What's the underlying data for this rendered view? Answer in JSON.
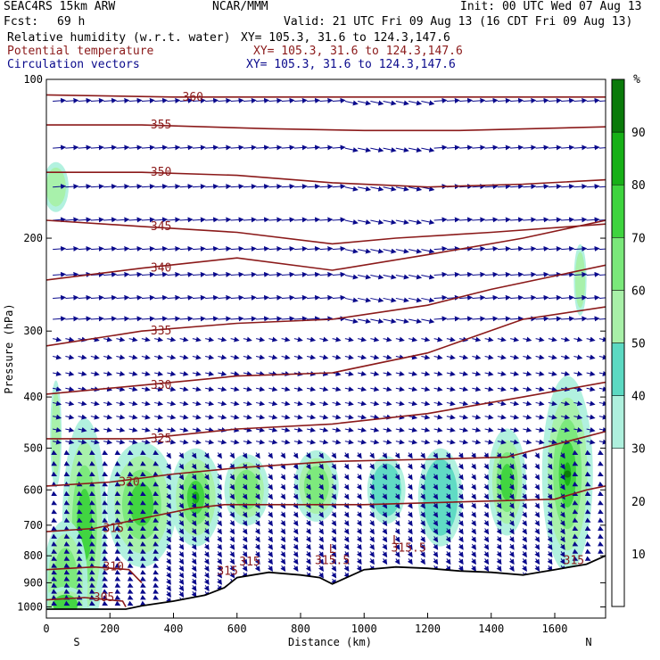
{
  "header": {
    "model": "SEAC4RS 15km ARW",
    "org": "NCAR/MMM",
    "init": "Init: 00 UTC Wed 07 Aug 13",
    "fcst_label": "Fcst:",
    "fcst_value": "69 h",
    "valid": "Valid: 21 UTC Fri 09 Aug 13 (16 CDT Fri 09 Aug 13)"
  },
  "fields": [
    {
      "label": "Relative humidity (w.r.t. water)",
      "xy": "XY= 105.3, 31.6 to 124.3,147.6",
      "color": "#000000"
    },
    {
      "label": "Potential temperature",
      "xy": "XY= 105.3, 31.6 to 124.3,147.6",
      "color": "#8b1a1a"
    },
    {
      "label": "Circulation vectors",
      "xy": "XY= 105.3, 31.6 to 124.3,147.6",
      "color": "#0a0a8c"
    }
  ],
  "chart_data": {
    "type": "cross-section",
    "ylabel": "Pressure (hPa)",
    "xlabel": "Distance (km)",
    "xlim": [
      0,
      1760
    ],
    "ylim": [
      1050,
      100
    ],
    "y_scale": "log",
    "x_ticks": [
      "0",
      "200",
      "400",
      "600",
      "800",
      "1000",
      "1200",
      "1400",
      "1600"
    ],
    "x_tick_values": [
      0,
      200,
      400,
      600,
      800,
      1000,
      1200,
      1400,
      1600
    ],
    "y_ticks": [
      "100",
      "200",
      "300",
      "400",
      "500",
      "600",
      "700",
      "800",
      "900",
      "1000"
    ],
    "y_tick_values": [
      100,
      200,
      300,
      400,
      500,
      600,
      700,
      800,
      900,
      1000
    ],
    "left_end_label": "S",
    "right_end_label": "N",
    "colorbar": {
      "unit": "%",
      "labels": [
        "10",
        "20",
        "30",
        "40",
        "50",
        "60",
        "70",
        "80",
        "90"
      ],
      "levels": [
        0,
        30,
        40,
        50,
        60,
        70,
        80,
        90,
        100
      ],
      "colors": [
        "#ffffff",
        "#aef0dd",
        "#5cd9c2",
        "#a8f0a8",
        "#7ae87a",
        "#3ed43e",
        "#17b017",
        "#0a7a0a"
      ]
    },
    "theta_contour_labels": [
      "360",
      "355",
      "350",
      "345",
      "340",
      "335",
      "330",
      "325",
      "320",
      "315",
      "310",
      "305",
      "315.5"
    ],
    "theta_contours": [
      {
        "label": "360",
        "points": [
          [
            0,
            107
          ],
          [
            400,
            108
          ],
          [
            800,
            108
          ],
          [
            1200,
            108
          ],
          [
            1760,
            108
          ]
        ]
      },
      {
        "label": "355",
        "points": [
          [
            0,
            122
          ],
          [
            300,
            122
          ],
          [
            700,
            124
          ],
          [
            1000,
            125
          ],
          [
            1300,
            125
          ],
          [
            1760,
            123
          ]
        ]
      },
      {
        "label": "350",
        "points": [
          [
            0,
            150
          ],
          [
            300,
            150
          ],
          [
            600,
            152
          ],
          [
            900,
            157
          ],
          [
            1200,
            160
          ],
          [
            1500,
            158
          ],
          [
            1760,
            155
          ]
        ]
      },
      {
        "label": "345",
        "points": [
          [
            0,
            185
          ],
          [
            300,
            190
          ],
          [
            600,
            195
          ],
          [
            900,
            205
          ],
          [
            1100,
            200
          ],
          [
            1400,
            195
          ],
          [
            1760,
            188
          ]
        ]
      },
      {
        "label": "340",
        "points": [
          [
            0,
            240
          ],
          [
            300,
            228
          ],
          [
            600,
            218
          ],
          [
            900,
            230
          ],
          [
            1200,
            215
          ],
          [
            1500,
            200
          ],
          [
            1760,
            185
          ]
        ]
      },
      {
        "label": "335",
        "points": [
          [
            0,
            320
          ],
          [
            300,
            300
          ],
          [
            600,
            290
          ],
          [
            900,
            285
          ],
          [
            1200,
            268
          ],
          [
            1400,
            250
          ],
          [
            1760,
            225
          ]
        ]
      },
      {
        "label": "330",
        "points": [
          [
            0,
            395
          ],
          [
            300,
            380
          ],
          [
            600,
            365
          ],
          [
            900,
            360
          ],
          [
            1200,
            330
          ],
          [
            1500,
            285
          ],
          [
            1760,
            270
          ]
        ]
      },
      {
        "label": "325",
        "points": [
          [
            0,
            480
          ],
          [
            300,
            480
          ],
          [
            600,
            460
          ],
          [
            900,
            450
          ],
          [
            1200,
            430
          ],
          [
            1500,
            400
          ],
          [
            1760,
            375
          ]
        ]
      },
      {
        "label": "320",
        "points": [
          [
            0,
            590
          ],
          [
            200,
            580
          ],
          [
            400,
            560
          ],
          [
            600,
            545
          ],
          [
            900,
            530
          ],
          [
            1200,
            525
          ],
          [
            1450,
            520
          ],
          [
            1760,
            465
          ]
        ]
      },
      {
        "label": "315",
        "points": [
          [
            0,
            720
          ],
          [
            150,
            710
          ],
          [
            300,
            680
          ],
          [
            460,
            650
          ],
          [
            560,
            640
          ],
          [
            600,
            640
          ],
          [
            1000,
            640
          ],
          [
            1600,
            625
          ],
          [
            1700,
            600
          ],
          [
            1760,
            590
          ]
        ]
      },
      {
        "label": "310",
        "points": [
          [
            0,
            850
          ],
          [
            150,
            840
          ],
          [
            260,
            850
          ],
          [
            300,
            900
          ]
        ]
      },
      {
        "label": "305",
        "points": [
          [
            0,
            970
          ],
          [
            120,
            960
          ],
          [
            240,
            975
          ],
          [
            250,
            1000
          ]
        ]
      }
    ],
    "terrain_pressure": [
      [
        0,
        1010
      ],
      [
        250,
        1010
      ],
      [
        300,
        995
      ],
      [
        400,
        975
      ],
      [
        500,
        950
      ],
      [
        560,
        920
      ],
      [
        600,
        880
      ],
      [
        700,
        860
      ],
      [
        800,
        870
      ],
      [
        860,
        880
      ],
      [
        900,
        905
      ],
      [
        1000,
        850
      ],
      [
        1100,
        840
      ],
      [
        1200,
        845
      ],
      [
        1300,
        855
      ],
      [
        1400,
        860
      ],
      [
        1500,
        870
      ],
      [
        1600,
        850
      ],
      [
        1700,
        830
      ],
      [
        1760,
        800
      ]
    ]
  }
}
